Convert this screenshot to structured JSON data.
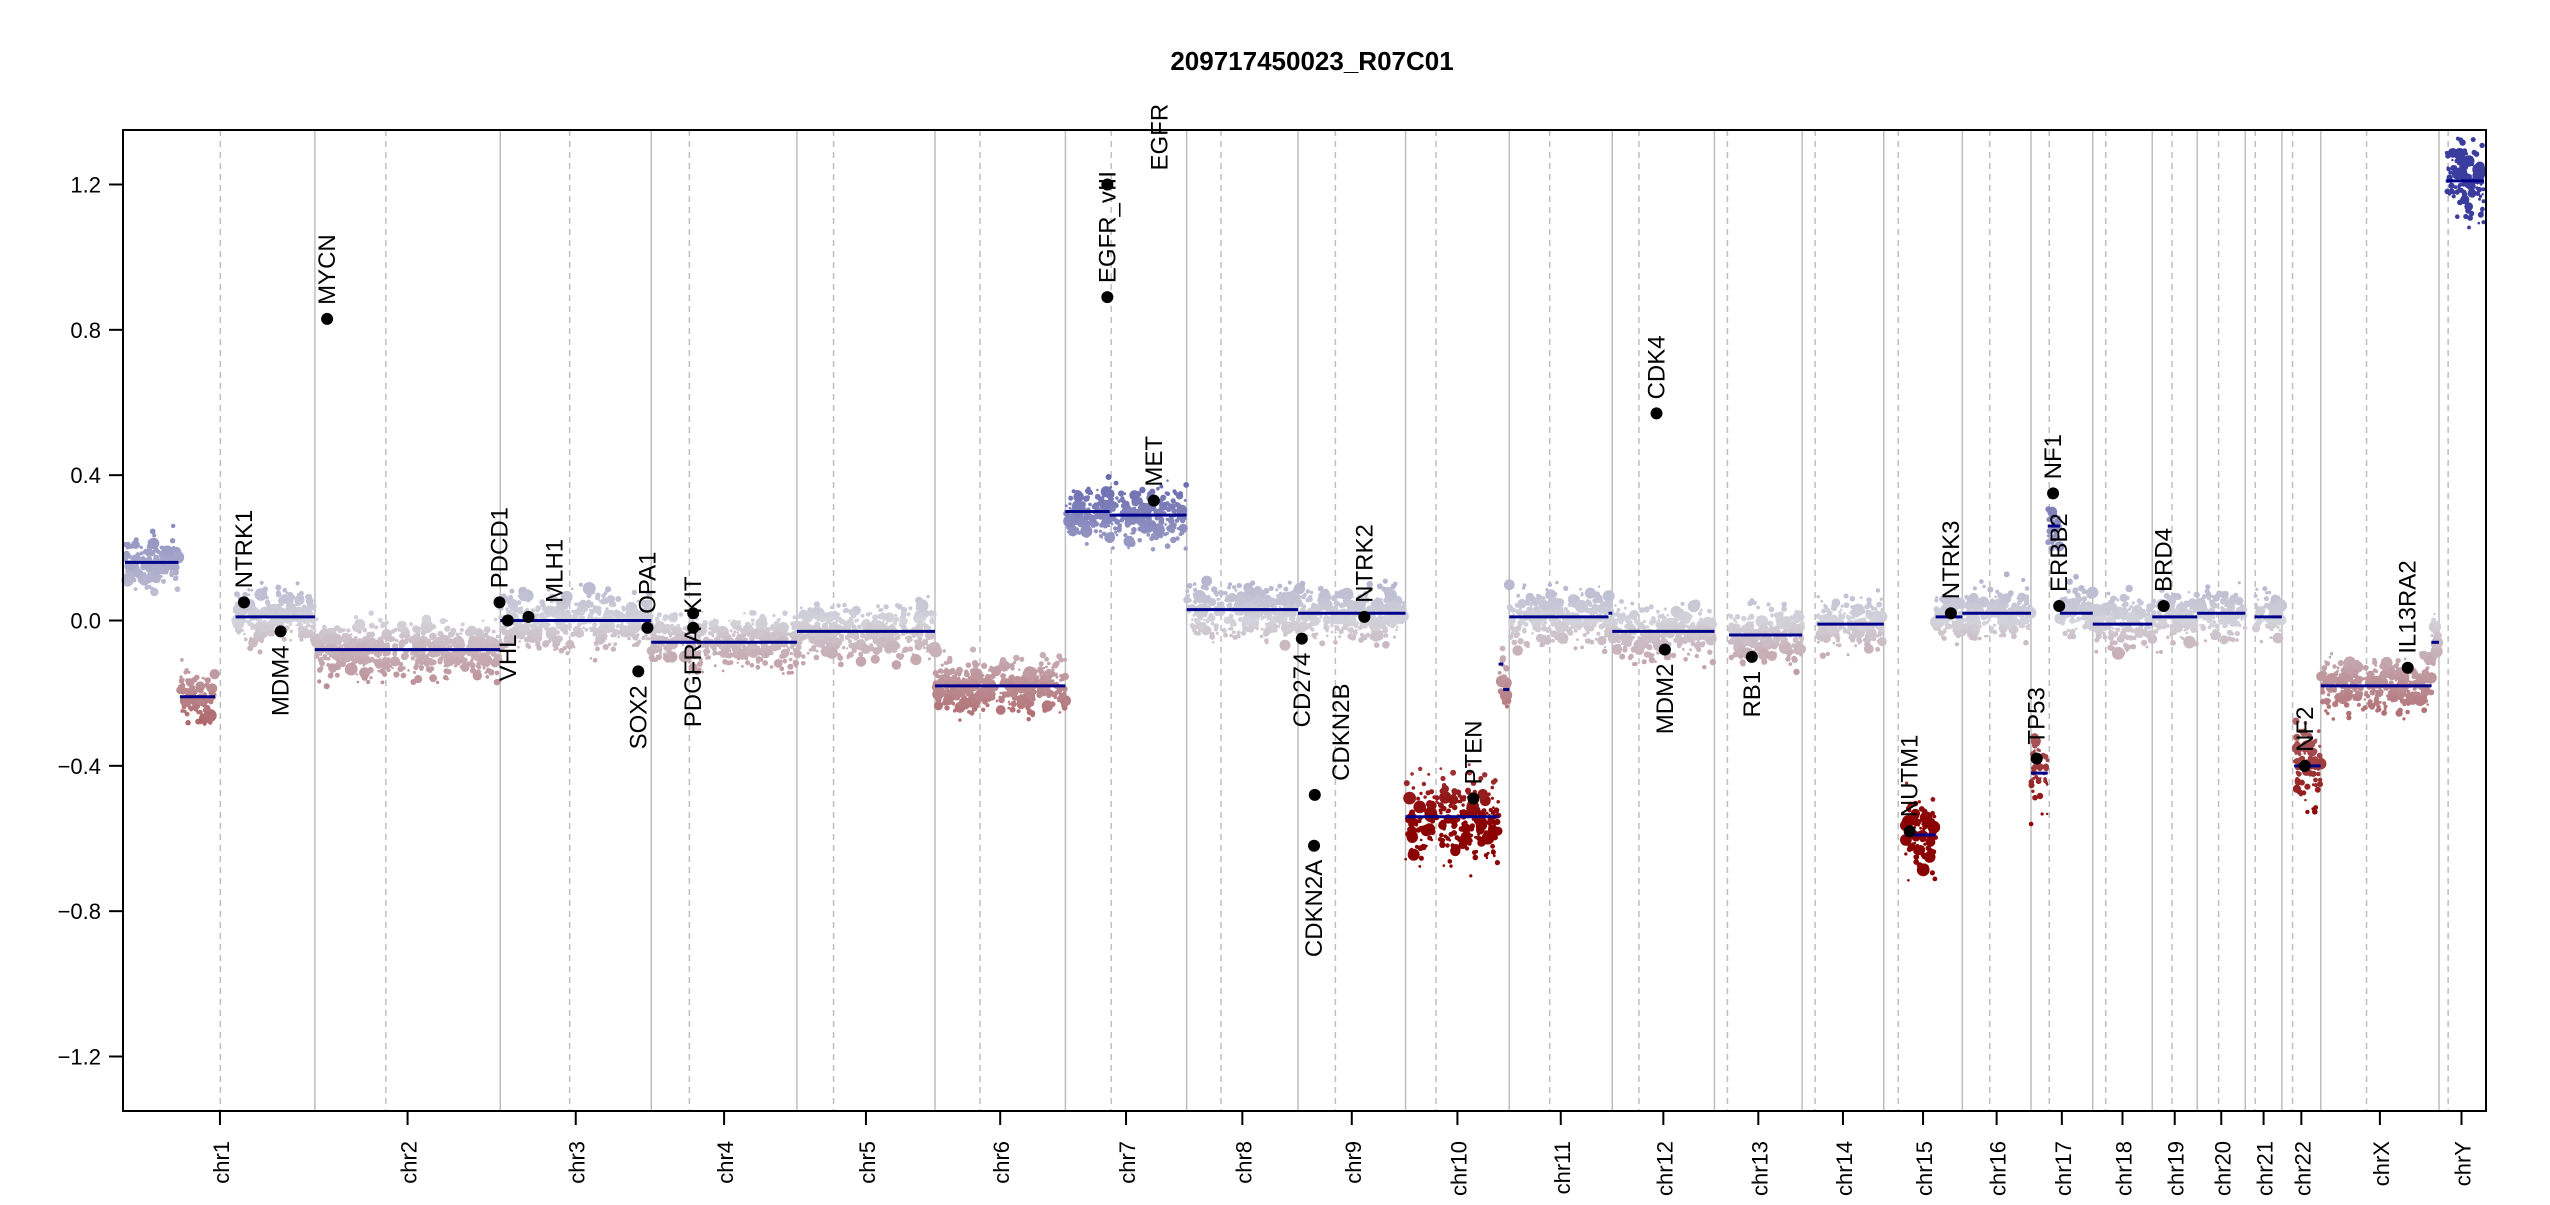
{
  "chart_data": {
    "type": "scatter",
    "title": "209717450023_R07C01",
    "xlabel": "",
    "ylabel": "",
    "ylim": [
      -1.35,
      1.35
    ],
    "yticks": [
      -1.2,
      -0.8,
      -0.4,
      0.0,
      0.4,
      0.8,
      1.2
    ],
    "ytick_labels": [
      "−1.2",
      "−0.8",
      "−0.4",
      "0.0",
      "0.4",
      "0.8",
      "1.2"
    ],
    "colors": {
      "gain": "#3a3d9e",
      "neutral": "#d3d3db",
      "loss": "#8b0000",
      "segment": "#00008b",
      "gene": "#000000",
      "grid": "#bebebe"
    },
    "chromosomes": [
      {
        "name": "chr1",
        "length_mb": 249,
        "centromere_mb": 125
      },
      {
        "name": "chr2",
        "length_mb": 243,
        "centromere_mb": 93
      },
      {
        "name": "chr3",
        "length_mb": 198,
        "centromere_mb": 91
      },
      {
        "name": "chr4",
        "length_mb": 191,
        "centromere_mb": 50
      },
      {
        "name": "chr5",
        "length_mb": 181,
        "centromere_mb": 48
      },
      {
        "name": "chr6",
        "length_mb": 171,
        "centromere_mb": 59
      },
      {
        "name": "chr7",
        "length_mb": 159,
        "centromere_mb": 60
      },
      {
        "name": "chr8",
        "length_mb": 146,
        "centromere_mb": 45
      },
      {
        "name": "chr9",
        "length_mb": 141,
        "centromere_mb": 49
      },
      {
        "name": "chr10",
        "length_mb": 136,
        "centromere_mb": 40
      },
      {
        "name": "chr11",
        "length_mb": 135,
        "centromere_mb": 53
      },
      {
        "name": "chr12",
        "length_mb": 134,
        "centromere_mb": 35
      },
      {
        "name": "chr13",
        "length_mb": 115,
        "centromere_mb": 17
      },
      {
        "name": "chr14",
        "length_mb": 107,
        "centromere_mb": 17
      },
      {
        "name": "chr15",
        "length_mb": 103,
        "centromere_mb": 19
      },
      {
        "name": "chr16",
        "length_mb": 90,
        "centromere_mb": 36
      },
      {
        "name": "chr17",
        "length_mb": 81,
        "centromere_mb": 24
      },
      {
        "name": "chr18",
        "length_mb": 78,
        "centromere_mb": 17
      },
      {
        "name": "chr19",
        "length_mb": 59,
        "centromere_mb": 26
      },
      {
        "name": "chr20",
        "length_mb": 63,
        "centromere_mb": 28
      },
      {
        "name": "chr21",
        "length_mb": 48,
        "centromere_mb": 13
      },
      {
        "name": "chr22",
        "length_mb": 51,
        "centromere_mb": 14
      },
      {
        "name": "chrX",
        "length_mb": 155,
        "centromere_mb": 60
      },
      {
        "name": "chrY",
        "length_mb": 59,
        "centromere_mb": 12
      }
    ],
    "segments": [
      {
        "chr": "chr1",
        "start": 0,
        "end": 70,
        "value": 0.16
      },
      {
        "chr": "chr1",
        "start": 72,
        "end": 118,
        "value": -0.21
      },
      {
        "chr": "chr1",
        "start": 145,
        "end": 249,
        "value": 0.01
      },
      {
        "chr": "chr2",
        "start": 0,
        "end": 243,
        "value": -0.08
      },
      {
        "chr": "chr3",
        "start": 0,
        "end": 198,
        "value": 0.0
      },
      {
        "chr": "chr4",
        "start": 0,
        "end": 191,
        "value": -0.06
      },
      {
        "chr": "chr5",
        "start": 0,
        "end": 181,
        "value": -0.03
      },
      {
        "chr": "chr6",
        "start": 0,
        "end": 171,
        "value": -0.18
      },
      {
        "chr": "chr7",
        "start": 0,
        "end": 58,
        "value": 0.3
      },
      {
        "chr": "chr7",
        "start": 58,
        "end": 159,
        "value": 0.29
      },
      {
        "chr": "chr8",
        "start": 0,
        "end": 146,
        "value": 0.03
      },
      {
        "chr": "chr9",
        "start": 0,
        "end": 141,
        "value": 0.02
      },
      {
        "chr": "chr10",
        "start": 0,
        "end": 122,
        "value": -0.54
      },
      {
        "chr": "chr10",
        "start": 122,
        "end": 128,
        "value": -0.12
      },
      {
        "chr": "chr10",
        "start": 128,
        "end": 136,
        "value": -0.19
      },
      {
        "chr": "chr11",
        "start": 0,
        "end": 130,
        "value": 0.01
      },
      {
        "chr": "chr11",
        "start": 130,
        "end": 135,
        "value": 0.02
      },
      {
        "chr": "chr12",
        "start": 0,
        "end": 134,
        "value": -0.03
      },
      {
        "chr": "chr13",
        "start": 19,
        "end": 115,
        "value": -0.04
      },
      {
        "chr": "chr14",
        "start": 20,
        "end": 107,
        "value": -0.01
      },
      {
        "chr": "chr15",
        "start": 28,
        "end": 68,
        "value": -0.59
      },
      {
        "chr": "chr15",
        "start": 68,
        "end": 103,
        "value": 0.01
      },
      {
        "chr": "chr16",
        "start": 0,
        "end": 90,
        "value": 0.02
      },
      {
        "chr": "chr17",
        "start": 0,
        "end": 22,
        "value": -0.42
      },
      {
        "chr": "chr17",
        "start": 22,
        "end": 38,
        "value": 0.26
      },
      {
        "chr": "chr17",
        "start": 38,
        "end": 81,
        "value": 0.02
      },
      {
        "chr": "chr18",
        "start": 0,
        "end": 78,
        "value": -0.01
      },
      {
        "chr": "chr19",
        "start": 0,
        "end": 59,
        "value": 0.01
      },
      {
        "chr": "chr20",
        "start": 0,
        "end": 63,
        "value": 0.02
      },
      {
        "chr": "chr21",
        "start": 12,
        "end": 48,
        "value": 0.01
      },
      {
        "chr": "chr22",
        "start": 16,
        "end": 51,
        "value": -0.4
      },
      {
        "chr": "chrX",
        "start": 0,
        "end": 145,
        "value": -0.18
      },
      {
        "chr": "chrX",
        "start": 145,
        "end": 155,
        "value": -0.06
      },
      {
        "chr": "chrY",
        "start": 10,
        "end": 59,
        "value": 1.21
      }
    ],
    "genes": [
      {
        "name": "NTRK1",
        "chr": "chr1",
        "pos": 156,
        "value": 0.05
      },
      {
        "name": "MDM4",
        "chr": "chr1",
        "pos": 204,
        "value": -0.03
      },
      {
        "name": "MYCN",
        "chr": "chr2",
        "pos": 16,
        "value": 0.83
      },
      {
        "name": "PDCD1",
        "chr": "chr2",
        "pos": 242,
        "value": 0.05
      },
      {
        "name": "VHL",
        "chr": "chr3",
        "pos": 10,
        "value": 0.0
      },
      {
        "name": "MLH1",
        "chr": "chr3",
        "pos": 37,
        "value": 0.01
      },
      {
        "name": "SOX2",
        "chr": "chr3",
        "pos": 181,
        "value": -0.14
      },
      {
        "name": "OPA1",
        "chr": "chr3",
        "pos": 193,
        "value": -0.02
      },
      {
        "name": "KIT",
        "chr": "chr4",
        "pos": 55,
        "value": -0.02
      },
      {
        "name": "PDGFRA",
        "chr": "chr4",
        "pos": 55,
        "value": 0.02
      },
      {
        "name": "EGFR_vIII",
        "chr": "chr7",
        "pos": 55,
        "value": 0.89
      },
      {
        "name": "EGFR",
        "chr": "chr7",
        "pos": 55,
        "value": 1.2
      },
      {
        "name": "MET",
        "chr": "chr7",
        "pos": 116,
        "value": 0.33
      },
      {
        "name": "CD274",
        "chr": "chr9",
        "pos": 5,
        "value": -0.05
      },
      {
        "name": "CDKN2A",
        "chr": "chr9",
        "pos": 21,
        "value": -0.62
      },
      {
        "name": "CDKN2B",
        "chr": "chr9",
        "pos": 22,
        "value": -0.48
      },
      {
        "name": "NTRK2",
        "chr": "chr9",
        "pos": 87,
        "value": 0.01
      },
      {
        "name": "PTEN",
        "chr": "chr10",
        "pos": 89,
        "value": -0.49
      },
      {
        "name": "CDK4",
        "chr": "chr12",
        "pos": 58,
        "value": 0.57
      },
      {
        "name": "MDM2",
        "chr": "chr12",
        "pos": 69,
        "value": -0.08
      },
      {
        "name": "RB1",
        "chr": "chr13",
        "pos": 49,
        "value": -0.1
      },
      {
        "name": "NUTM1",
        "chr": "chr15",
        "pos": 34,
        "value": -0.58
      },
      {
        "name": "NTRK3",
        "chr": "chr15",
        "pos": 88,
        "value": 0.02
      },
      {
        "name": "TP53",
        "chr": "chr17",
        "pos": 7.5,
        "value": -0.38
      },
      {
        "name": "NF1",
        "chr": "chr17",
        "pos": 29,
        "value": 0.35
      },
      {
        "name": "ERBB2",
        "chr": "chr17",
        "pos": 37,
        "value": 0.04
      },
      {
        "name": "BRD4",
        "chr": "chr19",
        "pos": 15,
        "value": 0.04
      },
      {
        "name": "NF2",
        "chr": "chr22",
        "pos": 30,
        "value": -0.4
      },
      {
        "name": "IL13RA2",
        "chr": "chrX",
        "pos": 114,
        "value": -0.13
      }
    ]
  }
}
